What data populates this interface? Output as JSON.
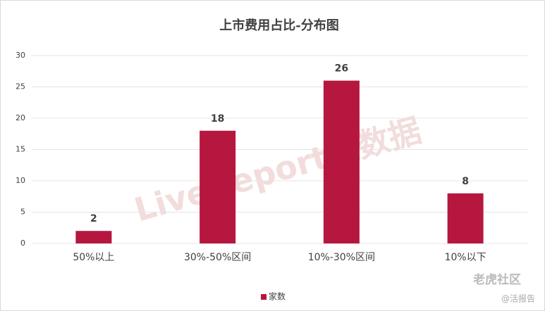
{
  "chart_data": {
    "type": "bar",
    "title": "上市费用占比-分布图",
    "categories": [
      "50%以上",
      "30%-50%区间",
      "10%-30%区间",
      "10%以下"
    ],
    "series": [
      {
        "name": "家数",
        "color": "#b5173f",
        "values": [
          2,
          18,
          26,
          8
        ]
      }
    ],
    "ylim": [
      0,
      30
    ],
    "yticks": [
      0,
      5,
      10,
      15,
      20,
      25,
      30
    ],
    "grid": true,
    "legend": "bottom",
    "watermark": "LiveReport大数据",
    "source_marks": [
      "老虎社区",
      "@活报告"
    ]
  }
}
